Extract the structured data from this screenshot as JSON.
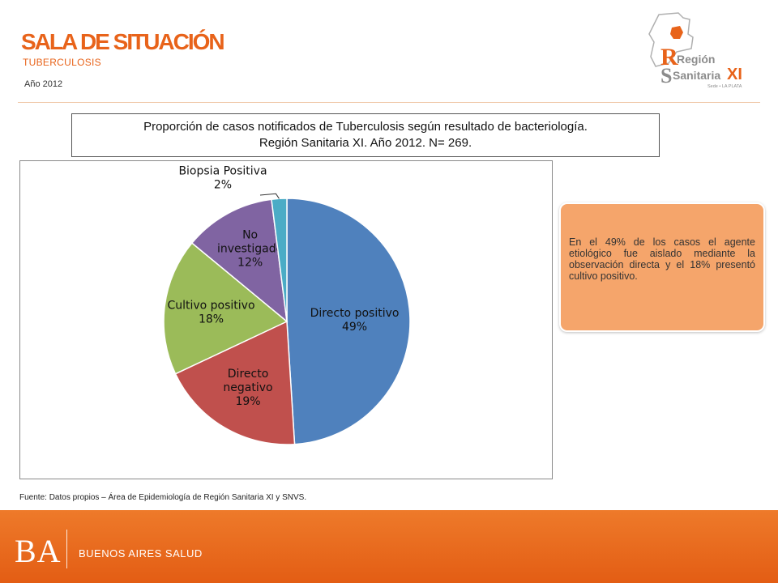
{
  "header": {
    "title": "SALA DE SITUACIÓN",
    "subtitle": "TUBERCULOSIS",
    "year": "Año 2012"
  },
  "logo": {
    "line1": "Región",
    "line2": "Sanitaria",
    "numeral": "XI",
    "tagline": "Sede • LA PLATA",
    "colors": {
      "orange": "#e8631a",
      "gray": "#8c8c8c"
    }
  },
  "chart_data": {
    "type": "pie",
    "title_line1": "Proporción de casos notificados de Tuberculosis  según resultado de bacteriología.",
    "title_line2": "Región Sanitaria XI. Año 2012. N= 269.",
    "slices": [
      {
        "label": "Directo positivo",
        "value": 49,
        "pct_label": "49%",
        "color": "#4f81bd"
      },
      {
        "label": "Directo negativo",
        "value": 19,
        "pct_label": "19%",
        "color": "#c0504d"
      },
      {
        "label": "Cultivo positivo",
        "value": 18,
        "pct_label": "18%",
        "color": "#9bbb59"
      },
      {
        "label": "No investigado",
        "value": 12,
        "pct_label": "12%",
        "color": "#8064a2"
      },
      {
        "label": "Biopsia Positiva",
        "value": 2,
        "pct_label": "2%",
        "color": "#4bacc6"
      }
    ]
  },
  "note": {
    "text": "En el 49% de los casos el agente etiológico fue aislado mediante la observación directa y el 18% presentó cultivo positivo.",
    "color": "#f5a56b"
  },
  "source": "Fuente: Datos propios – Área de Epidemiología de Región Sanitaria XI y SNVS.",
  "footer": {
    "brand": "BA",
    "text": "BUENOS AIRES SALUD",
    "color": "#e8641b"
  }
}
